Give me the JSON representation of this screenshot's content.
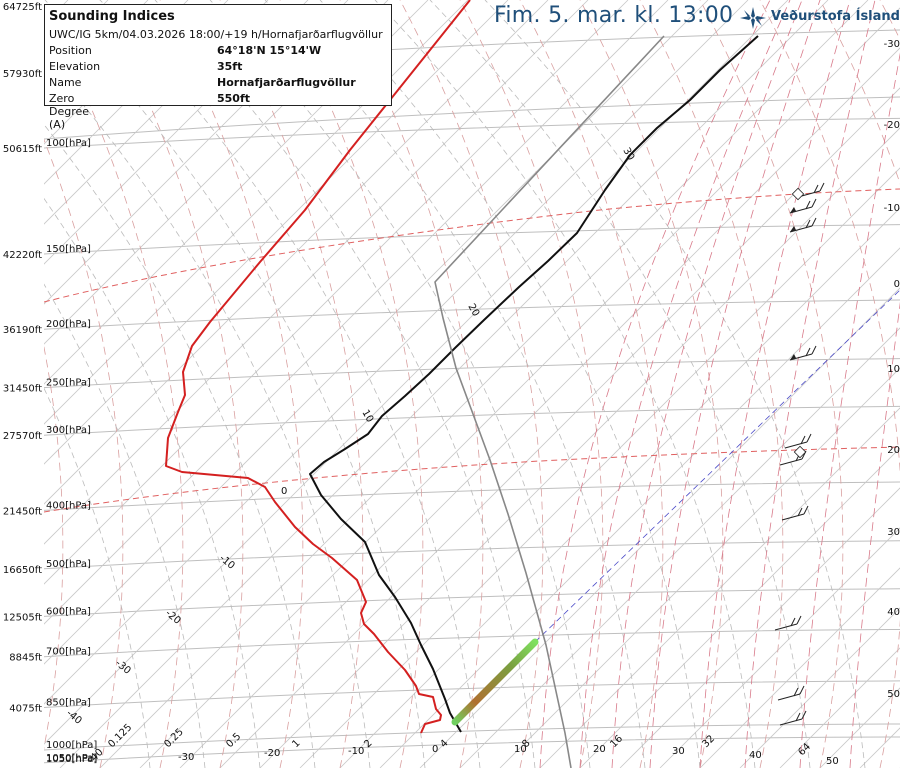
{
  "info": {
    "title": "Sounding Indices",
    "subtitle": "UWC/IG 5km/04.03.2026 18:00/+19 h/Hornafjarðarflugvöllur",
    "rows": [
      {
        "key": "Position",
        "value": "64°18'N 15°14'W"
      },
      {
        "key": "Elevation",
        "value": "35ft"
      },
      {
        "key": "Name",
        "value": "Hornafjarðarflugvöllur"
      },
      {
        "key": "Zero Degree (A)",
        "value": "550ft"
      }
    ]
  },
  "header": {
    "datetime": "Fim. 5. mar. kl. 13:00",
    "brand": "Veðurstofa Íslands"
  },
  "colors": {
    "temperature": "#d42020",
    "dewpoint_black": "#111111",
    "parcel": "#888888",
    "isotherm_zero": "#e06060",
    "dry_adiabat": "#d9a0a0",
    "moist_adiabat": "#bbbbbb",
    "isobar": "#bfbfbf",
    "mixing_ratio": "#d87a8a",
    "brand": "#1f4f7a"
  },
  "chart_data": {
    "type": "line",
    "title": "",
    "pressure_levels_hPa": [
      {
        "p": 100,
        "label": "100[hPa]",
        "alt": "50615ft"
      },
      {
        "p": 150,
        "label": "150[hPa]",
        "alt": "42220ft"
      },
      {
        "p": 200,
        "label": "200[hPa]",
        "alt": "36190ft"
      },
      {
        "p": 250,
        "label": "250[hPa]",
        "alt": "31450ft"
      },
      {
        "p": 300,
        "label": "300[hPa]",
        "alt": "27570ft"
      },
      {
        "p": 400,
        "label": "400[hPa]",
        "alt": "21450ft"
      },
      {
        "p": 500,
        "label": "500[hPa]",
        "alt": "16650ft"
      },
      {
        "p": 600,
        "label": "600[hPa]",
        "alt": "12505ft"
      },
      {
        "p": 700,
        "label": "700[hPa]",
        "alt": "8845ft"
      },
      {
        "p": 850,
        "label": "850[hPa]",
        "alt": "4075ft"
      },
      {
        "p": 1000,
        "label": "1000[hPa]",
        "alt": ""
      },
      {
        "p": 1050,
        "label": "1050[hPa]",
        "alt": ""
      }
    ],
    "top_altitudes": [
      "64725ft",
      "57930ft"
    ],
    "right_temperature_ticks": [
      "-30",
      "-20",
      "-10",
      "0",
      "10",
      "20",
      "30",
      "40",
      "50"
    ],
    "bottom_tick_labels": [
      "-40",
      "0.125",
      "-30",
      "0.25",
      "-20",
      "0.5",
      "1",
      "-10",
      "2",
      "0",
      "4",
      "10",
      "8",
      "20",
      "16",
      "30",
      "32",
      "40",
      "64",
      "50"
    ],
    "isotherm_labels": [
      "30",
      "20",
      "10",
      "0",
      "-10",
      "-20",
      "-30",
      "-40"
    ],
    "series": [
      {
        "id": "red_curve",
        "points": [
          [
            470,
            0
          ],
          [
            390,
            100
          ],
          [
            350,
            150
          ],
          [
            305,
            210
          ],
          [
            260,
            262
          ],
          [
            210,
            322
          ],
          [
            192,
            346
          ],
          [
            183,
            372
          ],
          [
            185,
            395
          ],
          [
            178,
            412
          ],
          [
            168,
            438
          ],
          [
            166,
            466
          ],
          [
            182,
            472
          ],
          [
            248,
            478
          ],
          [
            265,
            487
          ],
          [
            275,
            502
          ],
          [
            295,
            527
          ],
          [
            313,
            544
          ],
          [
            332,
            558
          ],
          [
            357,
            580
          ],
          [
            366,
            602
          ],
          [
            361,
            613
          ],
          [
            364,
            624
          ],
          [
            374,
            634
          ],
          [
            388,
            652
          ],
          [
            405,
            670
          ],
          [
            416,
            686
          ],
          [
            419,
            694
          ],
          [
            433,
            697
          ],
          [
            436,
            709
          ],
          [
            441,
            715
          ],
          [
            440,
            720
          ],
          [
            425,
            724
          ],
          [
            421,
            733
          ]
        ]
      },
      {
        "id": "black_curve",
        "points": [
          [
            758,
            36
          ],
          [
            720,
            70
          ],
          [
            690,
            100
          ],
          [
            657,
            128
          ],
          [
            630,
            155
          ],
          [
            605,
            190
          ],
          [
            577,
            233
          ],
          [
            548,
            261
          ],
          [
            519,
            287
          ],
          [
            484,
            320
          ],
          [
            455,
            348
          ],
          [
            429,
            374
          ],
          [
            405,
            396
          ],
          [
            382,
            416
          ],
          [
            368,
            434
          ],
          [
            345,
            449
          ],
          [
            324,
            462
          ],
          [
            310,
            474
          ],
          [
            321,
            495
          ],
          [
            341,
            519
          ],
          [
            365,
            542
          ],
          [
            379,
            575
          ],
          [
            395,
            597
          ],
          [
            411,
            623
          ],
          [
            421,
            645
          ],
          [
            433,
            669
          ],
          [
            445,
            699
          ],
          [
            450,
            713
          ],
          [
            461,
            732
          ]
        ]
      },
      {
        "id": "grey_curve",
        "points": [
          [
            664,
            36
          ],
          [
            435,
            282
          ],
          [
            443,
            318
          ],
          [
            456,
            368
          ],
          [
            473,
            414
          ],
          [
            490,
            460
          ],
          [
            508,
            514
          ],
          [
            526,
            573
          ],
          [
            546,
            645
          ],
          [
            565,
            733
          ],
          [
            571,
            768
          ]
        ]
      }
    ],
    "shaded_segment": {
      "from": [
        455,
        722
      ],
      "to": [
        535,
        642
      ]
    }
  }
}
